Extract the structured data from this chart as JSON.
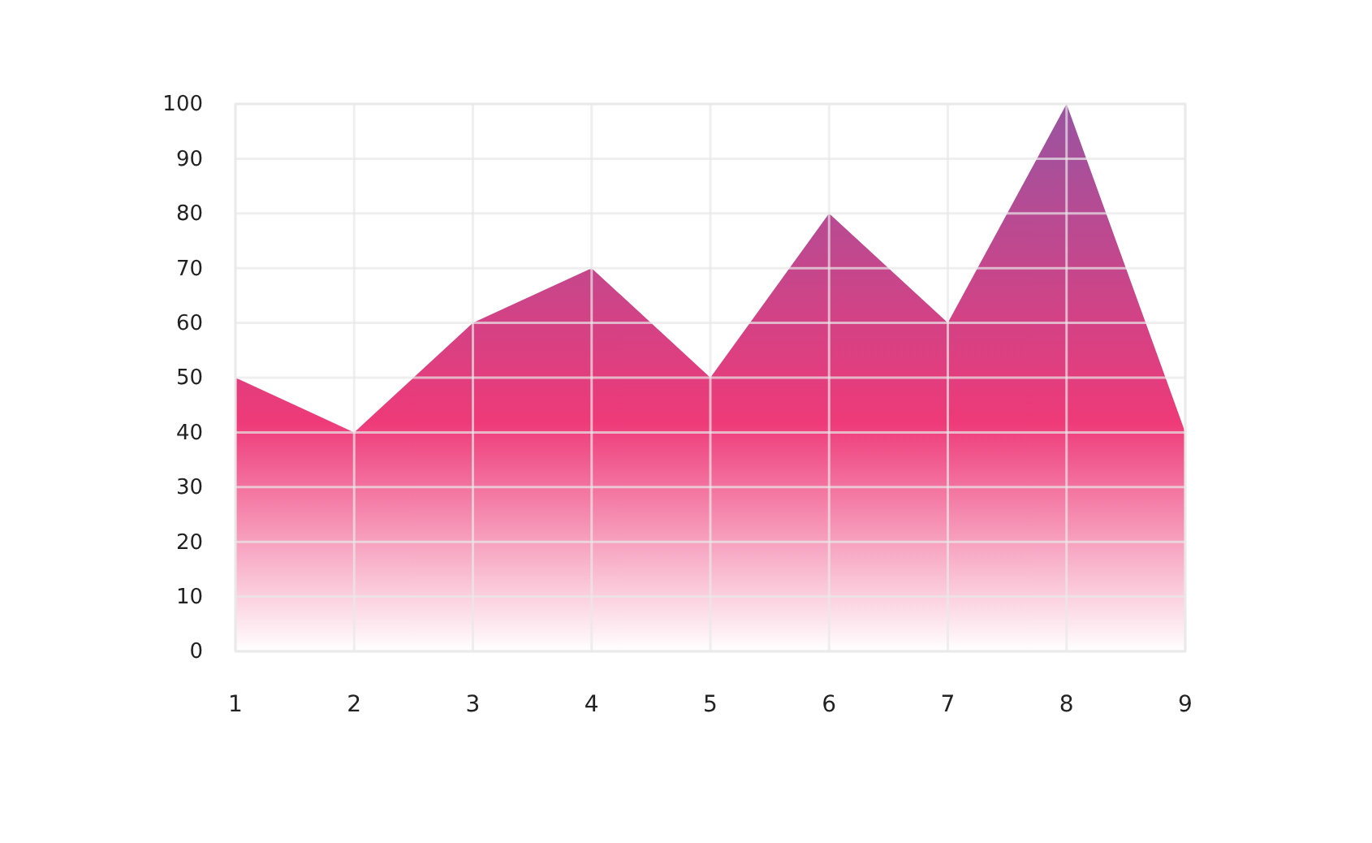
{
  "chart_data": {
    "type": "area",
    "x": [
      1,
      2,
      3,
      4,
      5,
      6,
      7,
      8,
      9
    ],
    "series": [
      {
        "color": "#ee3a78",
        "values": [
          50,
          40,
          60,
          70,
          50,
          80,
          60,
          100,
          40
        ]
      }
    ],
    "xlim": [
      1,
      9
    ],
    "xticks": [
      1,
      2,
      3,
      4,
      5,
      6,
      7,
      8,
      9
    ],
    "ylim": [
      0,
      100
    ],
    "yticks": [
      0,
      10,
      20,
      30,
      40,
      50,
      60,
      70,
      80,
      90,
      100
    ],
    "grid": true
  }
}
